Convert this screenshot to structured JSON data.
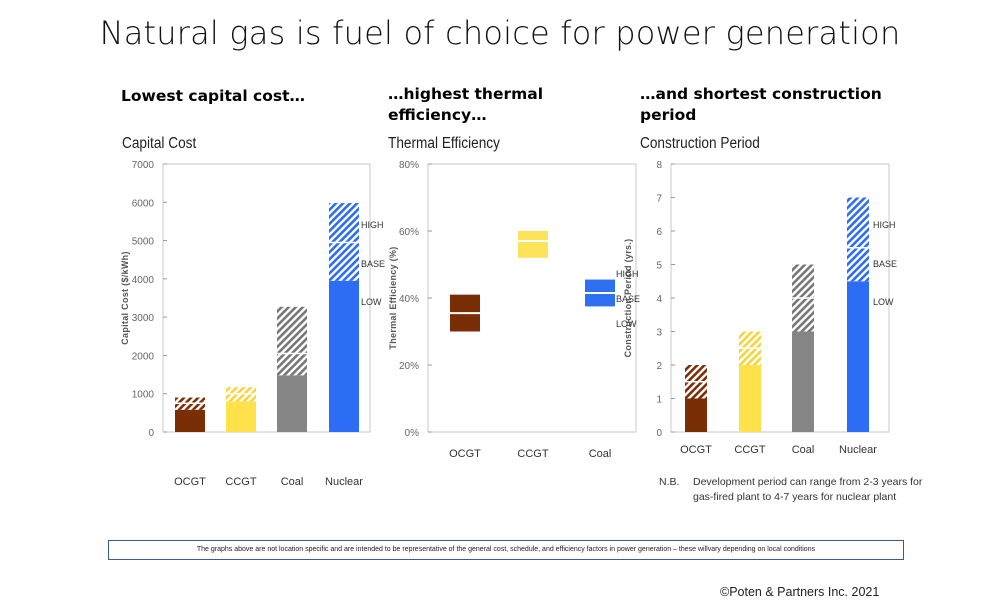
{
  "slide_title": "Natural gas is fuel of choice for power generation",
  "panels": [
    {
      "heading": "Lowest capital cost…"
    },
    {
      "heading": "…highest thermal efficiency…"
    },
    {
      "heading": "…and shortest construction period"
    }
  ],
  "colors": {
    "OCGT": "#7a2e06",
    "CCGT": "#ffe14c",
    "Coal": "#858585",
    "Nuclear": "#2d6cf5",
    "CCGT_eff": "#fde35a",
    "Nuclear_eff": "#2f6ff2"
  },
  "chart_data": [
    {
      "type": "bar",
      "title": "Capital Cost",
      "xlabel": "",
      "ylabel": "Capital Cost ($/kWh)",
      "ylim": [
        0,
        7000
      ],
      "yticks": [
        "0",
        "1000",
        "2000",
        "3000",
        "4000",
        "5000",
        "6000",
        "7000"
      ],
      "categories": [
        "OCGT",
        "CCGT",
        "Coal",
        "Nuclear"
      ],
      "series": [
        {
          "name": "LOW",
          "values": [
            580,
            800,
            1480,
            3950
          ]
        },
        {
          "name": "BASE",
          "values": [
            750,
            1000,
            2050,
            4950
          ]
        },
        {
          "name": "HIGH",
          "values": [
            900,
            1170,
            3270,
            5980
          ]
        }
      ],
      "annotations": [
        "HIGH",
        "BASE",
        "LOW"
      ]
    },
    {
      "type": "range",
      "title": "Thermal Efficiency",
      "xlabel": "",
      "ylabel": "Thermal Efficiency (%)",
      "ylim": [
        0,
        80
      ],
      "yticks": [
        "0%",
        "20%",
        "40%",
        "60%",
        "80%"
      ],
      "categories": [
        "OCGT",
        "CCGT",
        "Coal"
      ],
      "series": [
        {
          "name": "LOW",
          "values": [
            30,
            52,
            37.5
          ]
        },
        {
          "name": "BASE",
          "values": [
            35.5,
            57,
            41.5
          ]
        },
        {
          "name": "HIGH",
          "values": [
            41,
            60,
            45.5
          ]
        }
      ],
      "annotations": [
        "HIGH",
        "BASE",
        "LOW"
      ]
    },
    {
      "type": "bar",
      "title": "Construction Period",
      "xlabel": "",
      "ylabel": "Construction Period (yrs.)",
      "ylim": [
        0,
        8
      ],
      "yticks": [
        "0",
        "1",
        "2",
        "3",
        "4",
        "5",
        "6",
        "7",
        "8"
      ],
      "categories": [
        "OCGT",
        "CCGT",
        "Coal",
        "Nuclear"
      ],
      "series": [
        {
          "name": "LOW",
          "values": [
            1,
            2,
            3,
            4.5
          ]
        },
        {
          "name": "BASE",
          "values": [
            1.5,
            2.5,
            4,
            5.5
          ]
        },
        {
          "name": "HIGH",
          "values": [
            2,
            3,
            5,
            7
          ]
        }
      ],
      "annotations": [
        "HIGH",
        "BASE",
        "LOW"
      ]
    }
  ],
  "note": {
    "prefix": "N.B.",
    "text": "Development period can range from 2-3 years for gas-fired plant to 4-7 years for nuclear plant"
  },
  "footer": "The graphs above are not location specific and are intended to be representative of the general cost, schedule, and efficiency factors in power generation – these willvary depending on local conditions",
  "copyright": "©Poten & Partners Inc. 2021"
}
